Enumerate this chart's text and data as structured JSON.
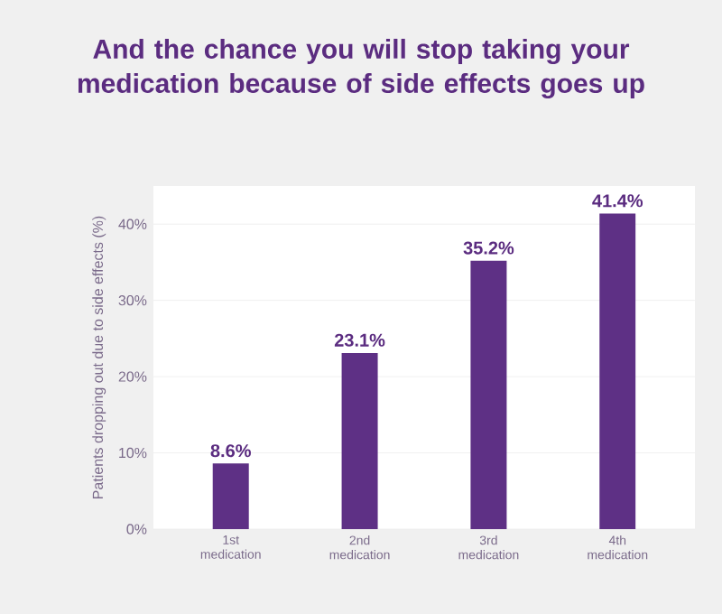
{
  "chart_data": {
    "type": "bar",
    "title": "And the chance you will stop taking your medication because of side effects goes up",
    "ylabel": "Patients dropping out due to side effects (%)",
    "categories": [
      "1st medication",
      "2nd medication",
      "3rd medication",
      "4th medication"
    ],
    "values": [
      8.6,
      23.1,
      35.2,
      41.4
    ],
    "value_labels": [
      "8.6%",
      "23.1%",
      "35.2%",
      "41.4%"
    ],
    "color": "#5e3085",
    "ylim": [
      0,
      45
    ],
    "yticks": [
      {
        "value": 0,
        "label": "0%"
      },
      {
        "value": 10,
        "label": "10%"
      },
      {
        "value": 20,
        "label": "20%"
      },
      {
        "value": 30,
        "label": "30%"
      },
      {
        "value": 40,
        "label": "40%"
      }
    ],
    "grid": "y"
  }
}
